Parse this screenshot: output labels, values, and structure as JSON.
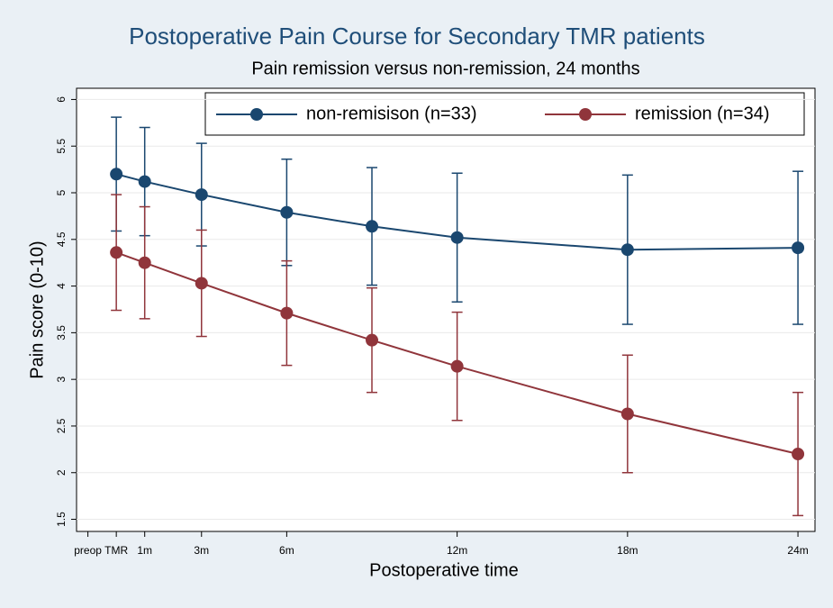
{
  "chart_data": {
    "type": "line",
    "title": "Postoperative Pain Course for Secondary TMR patients",
    "subtitle": "Pain remission versus non-remission, 24 months",
    "x_label": "Postoperative time",
    "y_label": "Pain score (0-10)",
    "x": [
      0,
      1,
      3,
      6,
      9,
      12,
      18,
      24
    ],
    "series": [
      {
        "name": "non-remisison (n=33)",
        "color": "#1a476f",
        "values": [
          5.2,
          5.12,
          4.98,
          4.79,
          4.64,
          4.52,
          4.39,
          4.41
        ],
        "errors": [
          0.61,
          0.58,
          0.55,
          0.57,
          0.63,
          0.69,
          0.8,
          0.82
        ]
      },
      {
        "name": "remission (n=34)",
        "color": "#90353b",
        "values": [
          4.36,
          4.25,
          4.03,
          3.71,
          3.42,
          3.14,
          2.63,
          2.2
        ],
        "errors": [
          0.62,
          0.6,
          0.57,
          0.56,
          0.56,
          0.58,
          0.63,
          0.66
        ]
      }
    ],
    "xlim": [
      -1.4,
      24.6
    ],
    "xticks": [
      {
        "value": -1,
        "label": "preop"
      },
      {
        "value": 0,
        "label": "TMR"
      },
      {
        "value": 1,
        "label": "1m"
      },
      {
        "value": 3,
        "label": "3m"
      },
      {
        "value": 6,
        "label": "6m"
      },
      {
        "value": 12,
        "label": "12m"
      },
      {
        "value": 18,
        "label": "18m"
      },
      {
        "value": 24,
        "label": "24m"
      }
    ],
    "ylim": [
      1.37,
      6.12
    ],
    "yticks": [
      1.5,
      2,
      2.5,
      3,
      3.5,
      4,
      4.5,
      5,
      5.5,
      6
    ],
    "grid": true,
    "legend": "top"
  }
}
